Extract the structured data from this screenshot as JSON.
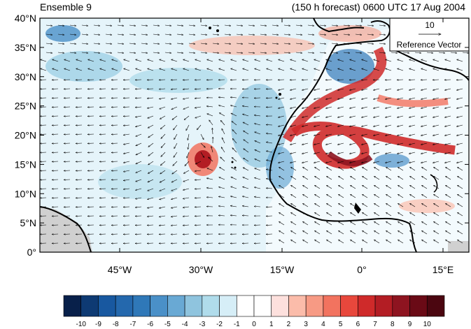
{
  "header": {
    "left_title": "Ensemble 9",
    "right_title": "(150 h forecast) 0600 UTC 17 Aug 2004"
  },
  "map": {
    "lat_ticks": [
      "40°N",
      "35°N",
      "30°N",
      "25°N",
      "20°N",
      "15°N",
      "10°N",
      "5°N",
      "0°"
    ],
    "lon_ticks": [
      "45°W",
      "30°W",
      "15°W",
      "0°",
      "15°E"
    ],
    "reference_vector": {
      "value": "10",
      "label": "Reference Vector"
    }
  },
  "colorbar": {
    "labels": [
      "-10",
      "-9",
      "-8",
      "-7",
      "-6",
      "-5",
      "-4",
      "-3",
      "-2",
      "-1",
      "0",
      "1",
      "2",
      "3",
      "4",
      "5",
      "6",
      "7",
      "8",
      "9",
      "10"
    ],
    "colors": [
      "#08204a",
      "#0e3a73",
      "#1858a0",
      "#2468ad",
      "#2f78b8",
      "#4a90c8",
      "#69a9d4",
      "#8fc4de",
      "#b0dceb",
      "#d6eef7",
      "#ffffff",
      "#ffffff",
      "#fde0dd",
      "#fbbcaa",
      "#f79a84",
      "#f2735f",
      "#e8473c",
      "#cf2a2a",
      "#b31d24",
      "#8e1420",
      "#6a0a16",
      "#4b0610"
    ]
  }
}
